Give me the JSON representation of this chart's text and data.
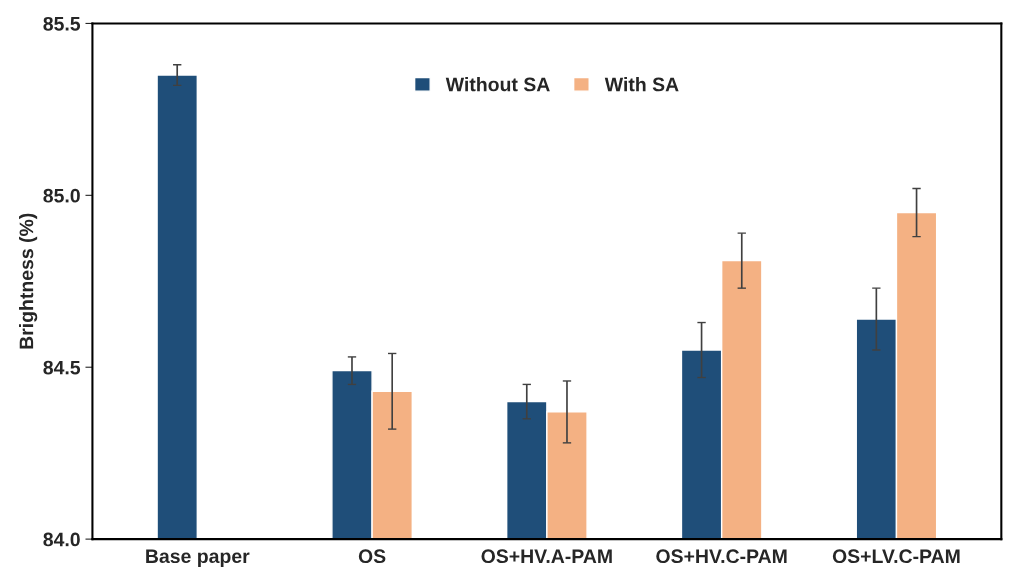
{
  "chart_data": {
    "type": "bar",
    "ylabel": "Brightness (%)",
    "categories": [
      "Base paper",
      "OS",
      "OS+HV.A-PAM",
      "OS+HV.C-PAM",
      "OS+LV.C-PAM"
    ],
    "series": [
      {
        "name": "Without SA",
        "color": "#1f4e79",
        "values": [
          85.35,
          84.49,
          84.4,
          84.55,
          84.64
        ],
        "errors": [
          0.03,
          0.04,
          0.05,
          0.08,
          0.09
        ]
      },
      {
        "name": "With SA",
        "color": "#f4b183",
        "values": [
          null,
          84.43,
          84.37,
          84.81,
          84.95
        ],
        "errors": [
          null,
          0.11,
          0.09,
          0.08,
          0.07
        ]
      }
    ],
    "ylim": [
      84.0,
      85.5
    ],
    "yticks": [
      {
        "value": 84.0,
        "label": "84.0"
      },
      {
        "value": 84.5,
        "label": "84.5"
      },
      {
        "value": 85.0,
        "label": "85.0"
      },
      {
        "value": 85.5,
        "label": "85.5"
      }
    ],
    "grid": false,
    "legend": "top"
  }
}
